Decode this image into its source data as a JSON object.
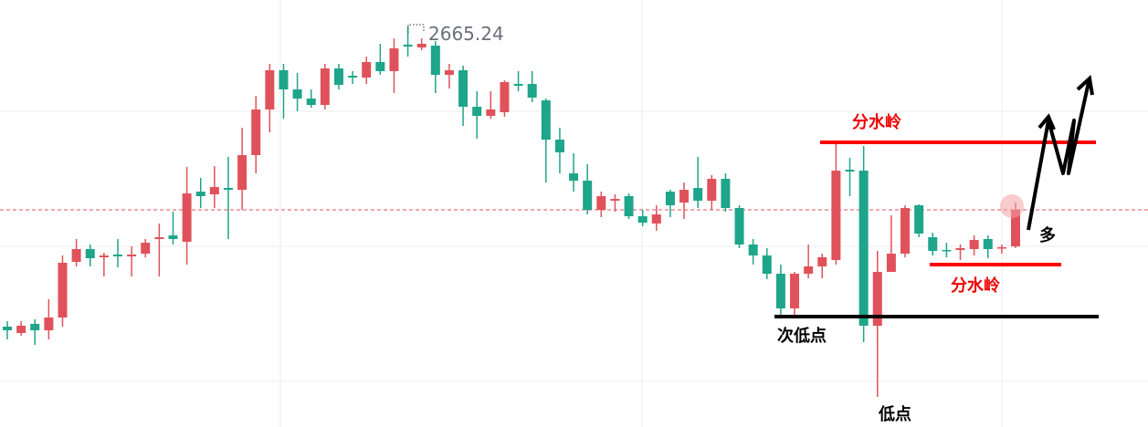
{
  "chart_data": {
    "type": "candlestick",
    "up_color": "#e0525b",
    "down_color": "#1ea58a",
    "ylim": [
      2577.4,
      2671
    ],
    "open": [
      2599.4,
      2598,
      2600,
      2598.6,
      2601.4,
      2613.6,
      2616.4,
      2614.6,
      2615.2,
      2614.8,
      2615.4,
      2618.6,
      2619.4,
      2618,
      2629,
      2628.4,
      2629.8,
      2629.4,
      2637,
      2647,
      2655.6,
      2651.4,
      2649.4,
      2648,
      2656,
      2654.4,
      2654,
      2657.4,
      2655.4,
      2661.2,
      2660.6,
      2661,
      2654.6,
      2655.6,
      2647.6,
      2645.6,
      2646.4,
      2652.6,
      2652.6,
      2649,
      2640.4,
      2633,
      2631.4,
      2625,
      2627,
      2628,
      2623.6,
      2622,
      2629,
      2626.6,
      2629.8,
      2627,
      2631.8,
      2625.4,
      2617.4,
      2615,
      2611,
      2603.4,
      2611,
      2612.6,
      2614,
      2633.8,
      2633.6,
      2599.6,
      2611.4,
      2615.4,
      2626,
      2619,
      2616.2,
      2616.2,
      2616.4,
      2618.6,
      2616.6,
      2617
    ],
    "high": [
      2600.6,
      2600.6,
      2601,
      2605.4,
      2615,
      2618.6,
      2617.4,
      2615.6,
      2618.6,
      2617,
      2618.6,
      2622,
      2624.6,
      2634.4,
      2632,
      2634.6,
      2636.6,
      2643,
      2650,
      2657,
      2657,
      2655,
      2651.4,
      2657,
      2657,
      2655.4,
      2658.6,
      2661.4,
      2662.6,
      2665.24,
      2662.6,
      2662,
      2657,
      2656.6,
      2651,
      2651,
      2653.4,
      2655.4,
      2655.4,
      2649.4,
      2643,
      2637.4,
      2635,
      2629,
      2628.4,
      2628.6,
      2625,
      2626,
      2629.4,
      2631,
      2636.6,
      2632.6,
      2633,
      2626,
      2618.6,
      2616.6,
      2613,
      2611.4,
      2617.4,
      2615.4,
      2639.4,
      2636.4,
      2639,
      2616,
      2623.8,
      2626,
      2626.2,
      2620,
      2617.8,
      2617.4,
      2619.4,
      2619.4,
      2617.4,
      2626.6
    ],
    "low": [
      2596.6,
      2597.4,
      2595.4,
      2596.6,
      2599.4,
      2612.6,
      2612.6,
      2610.4,
      2612.4,
      2610.4,
      2614.6,
      2610.4,
      2617.4,
      2613,
      2625.4,
      2625.4,
      2618.6,
      2625,
      2633,
      2642,
      2645,
      2646.6,
      2647.4,
      2647,
      2651.4,
      2652.6,
      2652.6,
      2654.6,
      2650.6,
      2658.6,
      2660,
      2650.6,
      2651.6,
      2643.4,
      2640.6,
      2645,
      2645.4,
      2651,
      2648.6,
      2631,
      2633,
      2629,
      2624,
      2623.4,
      2624.6,
      2623,
      2621.4,
      2620.4,
      2623.4,
      2623,
      2625.4,
      2625,
      2624.6,
      2616.6,
      2613,
      2609.8,
      2602,
      2602,
      2610,
      2610,
      2613,
      2628,
      2596,
      2584,
      2611.4,
      2614.6,
      2619,
      2615,
      2614.6,
      2614,
      2615,
      2614.4,
      2615.4,
      2616.6
    ],
    "close": [
      2598.6,
      2599.6,
      2598.6,
      2601.4,
      2613.4,
      2616.4,
      2614.4,
      2615,
      2614.8,
      2615.2,
      2617.8,
      2619,
      2618.6,
      2628.6,
      2628,
      2630,
      2629.4,
      2637,
      2647,
      2655.6,
      2651.4,
      2649.4,
      2648,
      2656,
      2652.4,
      2654,
      2657.4,
      2655.4,
      2660.4,
      2660.8,
      2661.4,
      2654.6,
      2655.6,
      2647.6,
      2645.6,
      2647,
      2653,
      2652.2,
      2649.6,
      2640.4,
      2637.6,
      2631.4,
      2625,
      2628,
      2627.4,
      2623.6,
      2622.2,
      2624,
      2626,
      2629.4,
      2627,
      2631.8,
      2625.4,
      2617.4,
      2615,
      2611,
      2603.4,
      2611,
      2612.6,
      2614.6,
      2633.6,
      2633.4,
      2599.6,
      2611.4,
      2615.4,
      2625.4,
      2619.8,
      2616,
      2616,
      2616.6,
      2618.4,
      2616.4,
      2616.8,
      2625
    ],
    "annotations": [
      "分水岭",
      "分水岭",
      "次低点",
      "低点",
      "多"
    ]
  }
}
